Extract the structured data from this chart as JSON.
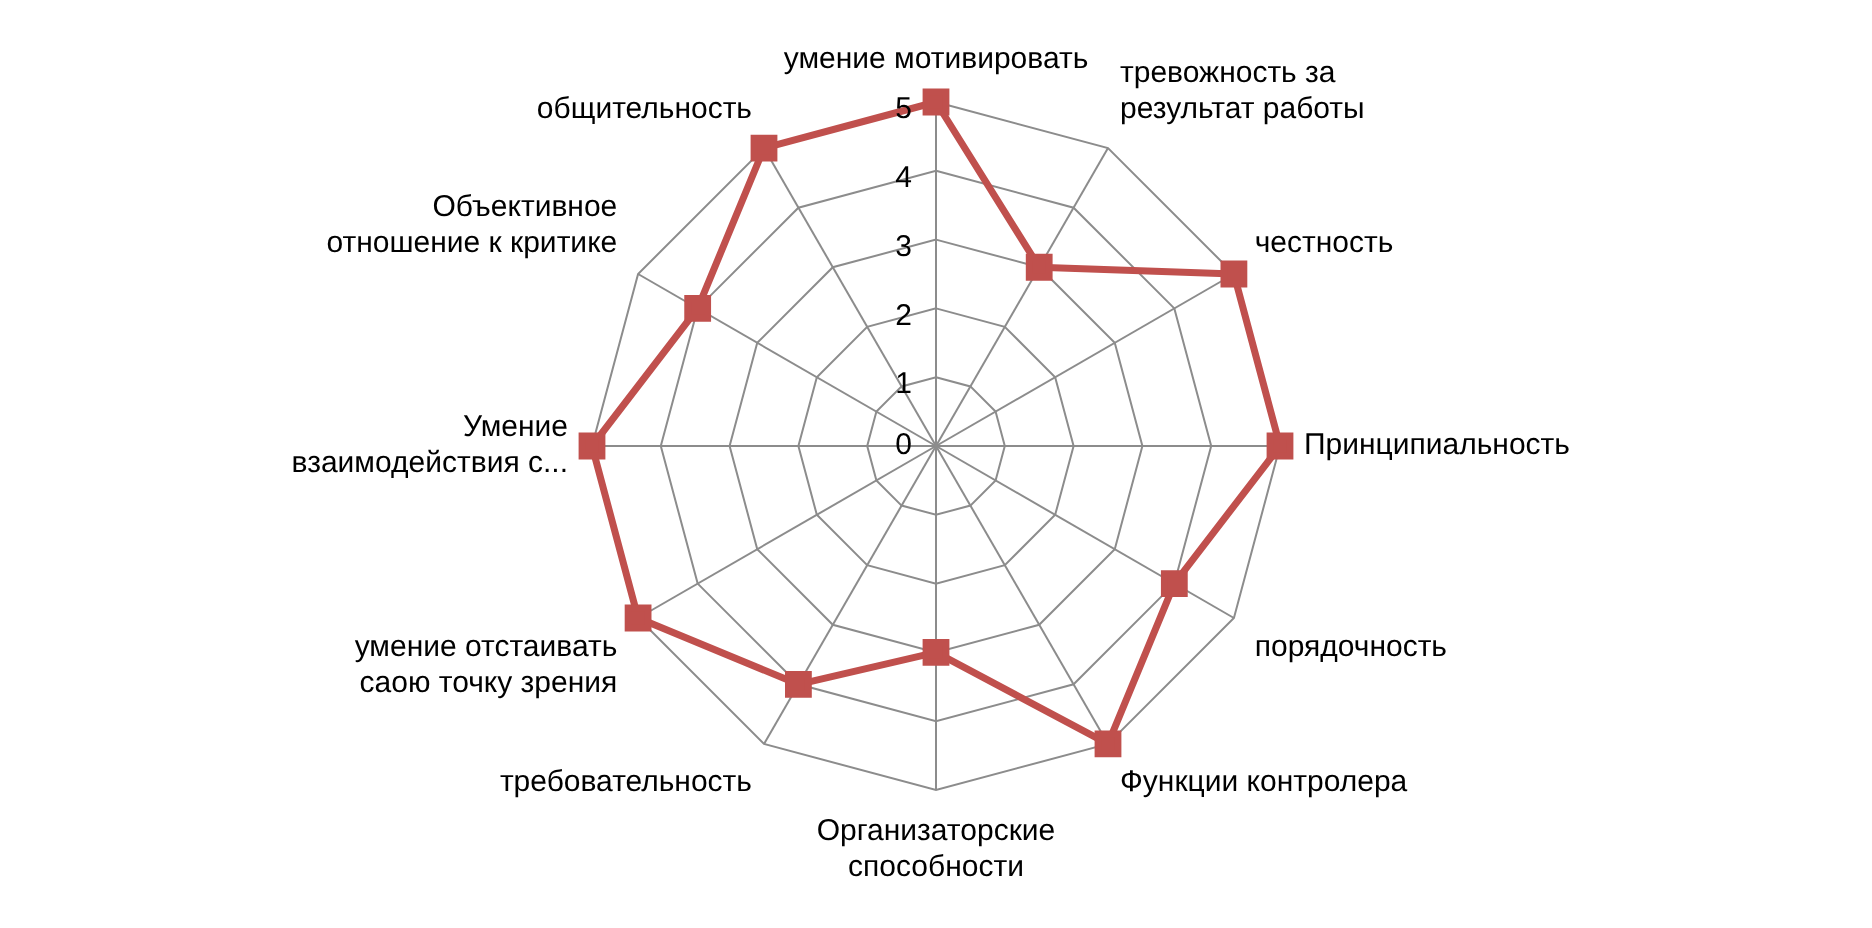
{
  "chart_data": {
    "type": "radar",
    "categories": [
      "умение мотивировать",
      "тревожность за результат работы",
      "честность",
      "Принципиальность",
      "порядочность",
      "Функции контролера",
      "Организаторские способности",
      "требовательность",
      "умение отстаивать саою точку зрения",
      "Умение взаимодействия с...",
      "Объективное отношение к критике",
      "общительность"
    ],
    "series": [
      {
        "color": "#c0504d",
        "values": [
          5,
          3,
          5,
          5,
          4,
          5,
          3,
          4,
          5,
          5,
          4,
          5
        ]
      }
    ],
    "ylim": [
      0,
      5
    ],
    "yticks": [
      0,
      1,
      2,
      3,
      4,
      5
    ],
    "grid": true,
    "legend": false,
    "marker": "square"
  }
}
